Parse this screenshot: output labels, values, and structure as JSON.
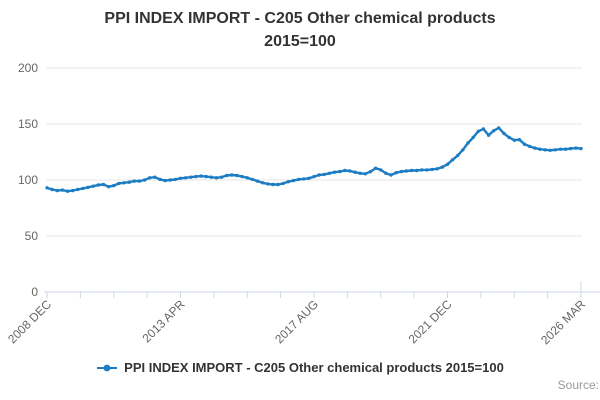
{
  "title": {
    "line1": "PPI INDEX IMPORT - C205 Other chemical products",
    "line2": "2015=100"
  },
  "legend": {
    "label": "PPI INDEX IMPORT - C205 Other chemical products 2015=100"
  },
  "source": {
    "label": "Source:"
  },
  "colors": {
    "series": "#1d7dc4",
    "grid": "#e6e6e6",
    "axis": "#ccd6eb",
    "tick_label": "#666666",
    "title_text": "#333333"
  },
  "chart_data": {
    "type": "line",
    "title": "PPI INDEX IMPORT - C205 Other chemical products 2015=100",
    "xlabel": "",
    "ylabel": "",
    "ylim": [
      0,
      200
    ],
    "yticks": [
      0,
      50,
      100,
      150,
      200
    ],
    "grid": "horizontal",
    "legend_position": "bottom",
    "x_range": [
      "2008 DEC",
      "2026 MAR"
    ],
    "x_tick_labels": [
      "2008 DEC",
      "2013 APR",
      "2017 AUG",
      "2021 DEC",
      "2026 MAR"
    ],
    "x_minor_ticks_between_labels": 3,
    "series": [
      {
        "name": "PPI INDEX IMPORT - C205 Other chemical products 2015=100",
        "sampling": "every 2 months from 2008 DEC to 2026 MAR",
        "values": [
          93,
          91.5,
          90.5,
          91,
          90,
          90.5,
          91.5,
          92.5,
          93.5,
          94.5,
          95.5,
          96,
          94,
          95,
          97,
          97.5,
          98,
          99,
          99,
          100,
          102,
          102.5,
          100.5,
          99.5,
          100,
          100.5,
          101.5,
          102,
          102.5,
          103,
          103.5,
          103,
          102.5,
          102,
          102.5,
          104,
          104.5,
          104,
          103,
          102,
          100.5,
          99,
          97.5,
          96.5,
          96,
          96,
          97,
          98.5,
          99.5,
          100.5,
          101,
          101.5,
          103,
          104.5,
          105,
          106,
          107,
          107.5,
          108.5,
          108,
          107,
          106,
          105.5,
          107.5,
          110.5,
          109,
          106,
          104.5,
          106.5,
          107.5,
          108,
          108.5,
          108.5,
          109,
          109,
          109.5,
          110,
          111.5,
          114,
          118,
          122,
          127,
          133,
          138,
          143.5,
          145.5,
          140,
          144,
          146.5,
          141.5,
          138,
          135.5,
          136,
          132,
          130,
          128.5,
          127.5,
          127,
          126.5,
          127,
          127.5,
          127.5,
          128,
          128.5,
          128
        ]
      }
    ]
  }
}
